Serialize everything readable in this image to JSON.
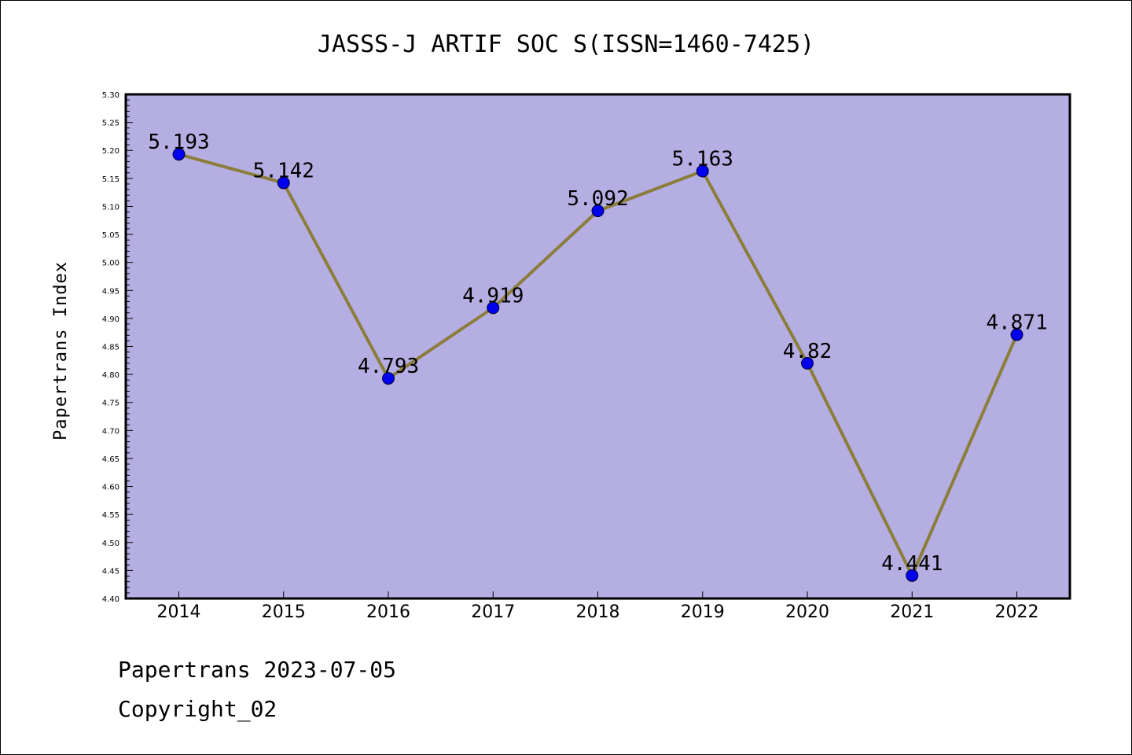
{
  "chart_data": {
    "type": "line",
    "title": "JASSS-J ARTIF SOC S(ISSN=1460-7425)",
    "ylabel": "Papertrans Index",
    "xlabel": "",
    "categories": [
      "2014",
      "2015",
      "2016",
      "2017",
      "2018",
      "2019",
      "2020",
      "2021",
      "2022"
    ],
    "series": [
      {
        "values": [
          5.193,
          5.142,
          4.793,
          4.919,
          5.092,
          5.163,
          4.82,
          4.441,
          4.871
        ],
        "labels": [
          "5.193",
          "5.142",
          "4.793",
          "4.919",
          "5.092",
          "5.163",
          "4.82",
          "4.441",
          "4.871"
        ]
      }
    ],
    "ylim": [
      4.4,
      5.3
    ],
    "yticks": [
      "4.40",
      "4.45",
      "4.50",
      "4.55",
      "4.60",
      "4.65",
      "4.70",
      "4.75",
      "4.80",
      "4.85",
      "4.90",
      "4.95",
      "5.00",
      "5.05",
      "5.10",
      "5.15",
      "5.20",
      "5.25",
      "5.30"
    ],
    "grid": false,
    "colors": {
      "plot_background": "#b5aee2",
      "line": "#8b7d3a",
      "marker": "#0000ee"
    }
  },
  "footer": {
    "line1": "Papertrans 2023-07-05",
    "line2": "Copyright_02"
  }
}
